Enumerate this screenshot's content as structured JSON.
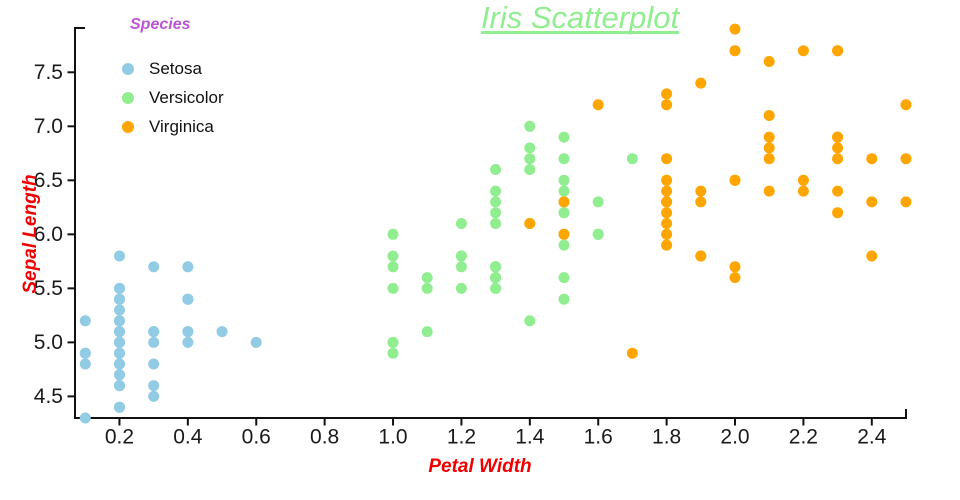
{
  "title": "Iris Scatterplot",
  "colors": {
    "title": "#90EE90",
    "axis_labels": "#F00000",
    "legend_title": "#BA55D3",
    "axis_line": "#111111",
    "tick_text": "#1a1a1a",
    "setosa": "#92CBE4",
    "versicolor": "#90EE90",
    "virginica": "#FFA500"
  },
  "legend": {
    "title": "Species",
    "items": [
      {
        "label": "Setosa",
        "color": "#92CBE4"
      },
      {
        "label": "Versicolor",
        "color": "#90EE90"
      },
      {
        "label": "Virginica",
        "color": "#FFA500"
      }
    ]
  },
  "chart_data": {
    "type": "scatter",
    "title": "Iris Scatterplot",
    "xlabel": "Petal Width",
    "ylabel": "Sepal Length",
    "xlim": [
      0.07,
      2.5
    ],
    "ylim": [
      4.3,
      7.91
    ],
    "x_ticks": [
      0.2,
      0.4,
      0.6,
      0.8,
      1.0,
      1.2,
      1.4,
      1.6,
      1.8,
      2.0,
      2.2,
      2.4
    ],
    "x_tick_labels": [
      "0.2",
      "0.4",
      "0.6",
      "0.8",
      "1.0",
      "1.2",
      "1.4",
      "1.6",
      "1.8",
      "2.0",
      "2.2",
      "2.4"
    ],
    "y_ticks": [
      4.5,
      5.0,
      5.5,
      6.0,
      6.5,
      7.0,
      7.5
    ],
    "y_tick_labels": [
      "4.5",
      "5.0",
      "5.5",
      "6.0",
      "6.5",
      "7.0",
      "7.5"
    ],
    "grid": false,
    "legend_position": "upper-left",
    "series": [
      {
        "name": "Setosa",
        "color": "#92CBE4",
        "points": [
          [
            0.2,
            5.1
          ],
          [
            0.2,
            4.9
          ],
          [
            0.2,
            4.7
          ],
          [
            0.2,
            4.6
          ],
          [
            0.2,
            5.0
          ],
          [
            0.4,
            5.4
          ],
          [
            0.3,
            4.6
          ],
          [
            0.2,
            5.0
          ],
          [
            0.2,
            4.4
          ],
          [
            0.1,
            4.9
          ],
          [
            0.2,
            5.4
          ],
          [
            0.2,
            4.8
          ],
          [
            0.1,
            4.8
          ],
          [
            0.1,
            4.3
          ],
          [
            0.2,
            5.8
          ],
          [
            0.4,
            5.7
          ],
          [
            0.4,
            5.4
          ],
          [
            0.3,
            5.1
          ],
          [
            0.3,
            5.7
          ],
          [
            0.3,
            5.1
          ],
          [
            0.2,
            5.4
          ],
          [
            0.4,
            5.1
          ],
          [
            0.2,
            4.6
          ],
          [
            0.5,
            5.1
          ],
          [
            0.2,
            4.8
          ],
          [
            0.2,
            5.0
          ],
          [
            0.4,
            5.0
          ],
          [
            0.2,
            5.2
          ],
          [
            0.2,
            5.2
          ],
          [
            0.2,
            4.7
          ],
          [
            0.2,
            4.8
          ],
          [
            0.4,
            5.4
          ],
          [
            0.1,
            5.2
          ],
          [
            0.2,
            5.5
          ],
          [
            0.2,
            4.9
          ],
          [
            0.2,
            5.0
          ],
          [
            0.2,
            5.5
          ],
          [
            0.1,
            4.9
          ],
          [
            0.2,
            4.4
          ],
          [
            0.2,
            5.1
          ],
          [
            0.3,
            5.0
          ],
          [
            0.3,
            4.5
          ],
          [
            0.2,
            4.4
          ],
          [
            0.6,
            5.0
          ],
          [
            0.4,
            5.1
          ],
          [
            0.3,
            4.8
          ],
          [
            0.2,
            5.1
          ],
          [
            0.2,
            4.6
          ],
          [
            0.2,
            5.3
          ],
          [
            0.2,
            5.0
          ]
        ]
      },
      {
        "name": "Versicolor",
        "color": "#90EE90",
        "points": [
          [
            1.4,
            7.0
          ],
          [
            1.5,
            6.4
          ],
          [
            1.5,
            6.9
          ],
          [
            1.3,
            5.5
          ],
          [
            1.5,
            6.5
          ],
          [
            1.3,
            5.7
          ],
          [
            1.6,
            6.3
          ],
          [
            1.0,
            4.9
          ],
          [
            1.3,
            6.6
          ],
          [
            1.4,
            5.2
          ],
          [
            1.0,
            5.0
          ],
          [
            1.5,
            5.9
          ],
          [
            1.0,
            6.0
          ],
          [
            1.4,
            6.1
          ],
          [
            1.3,
            5.6
          ],
          [
            1.4,
            6.7
          ],
          [
            1.5,
            5.6
          ],
          [
            1.0,
            5.8
          ],
          [
            1.5,
            6.2
          ],
          [
            1.1,
            5.6
          ],
          [
            1.8,
            5.9
          ],
          [
            1.3,
            6.1
          ],
          [
            1.5,
            6.3
          ],
          [
            1.2,
            6.1
          ],
          [
            1.3,
            6.4
          ],
          [
            1.4,
            6.6
          ],
          [
            1.4,
            6.8
          ],
          [
            1.7,
            6.7
          ],
          [
            1.5,
            6.0
          ],
          [
            1.0,
            5.7
          ],
          [
            1.1,
            5.5
          ],
          [
            1.0,
            5.5
          ],
          [
            1.2,
            5.8
          ],
          [
            1.6,
            6.0
          ],
          [
            1.5,
            5.4
          ],
          [
            1.6,
            6.0
          ],
          [
            1.5,
            6.7
          ],
          [
            1.3,
            6.3
          ],
          [
            1.3,
            5.6
          ],
          [
            1.3,
            5.5
          ],
          [
            1.2,
            5.5
          ],
          [
            1.4,
            6.1
          ],
          [
            1.2,
            5.8
          ],
          [
            1.0,
            5.0
          ],
          [
            1.3,
            5.6
          ],
          [
            1.2,
            5.7
          ],
          [
            1.3,
            5.7
          ],
          [
            1.3,
            6.2
          ],
          [
            1.1,
            5.1
          ],
          [
            1.3,
            5.7
          ]
        ]
      },
      {
        "name": "Virginica",
        "color": "#FFA500",
        "points": [
          [
            2.5,
            6.3
          ],
          [
            1.9,
            5.8
          ],
          [
            2.1,
            7.1
          ],
          [
            1.8,
            6.3
          ],
          [
            2.2,
            6.5
          ],
          [
            2.1,
            7.6
          ],
          [
            1.7,
            4.9
          ],
          [
            1.8,
            7.3
          ],
          [
            1.8,
            6.7
          ],
          [
            2.5,
            7.2
          ],
          [
            2.0,
            6.5
          ],
          [
            1.9,
            6.4
          ],
          [
            2.1,
            6.8
          ],
          [
            2.0,
            5.7
          ],
          [
            2.4,
            5.8
          ],
          [
            2.3,
            6.4
          ],
          [
            1.8,
            6.5
          ],
          [
            2.2,
            7.7
          ],
          [
            2.3,
            7.7
          ],
          [
            1.5,
            6.0
          ],
          [
            2.3,
            6.9
          ],
          [
            2.0,
            5.6
          ],
          [
            2.0,
            7.7
          ],
          [
            1.8,
            6.3
          ],
          [
            2.1,
            6.7
          ],
          [
            1.8,
            7.2
          ],
          [
            1.8,
            6.2
          ],
          [
            1.8,
            6.1
          ],
          [
            2.1,
            6.4
          ],
          [
            1.6,
            7.2
          ],
          [
            1.9,
            7.4
          ],
          [
            2.0,
            7.9
          ],
          [
            2.2,
            6.4
          ],
          [
            1.5,
            6.3
          ],
          [
            1.4,
            6.1
          ],
          [
            2.3,
            7.7
          ],
          [
            2.4,
            6.3
          ],
          [
            1.8,
            6.4
          ],
          [
            1.8,
            6.0
          ],
          [
            2.1,
            6.9
          ],
          [
            2.4,
            6.7
          ],
          [
            2.3,
            6.9
          ],
          [
            1.9,
            5.8
          ],
          [
            2.3,
            6.8
          ],
          [
            2.5,
            6.7
          ],
          [
            2.3,
            6.7
          ],
          [
            1.9,
            6.3
          ],
          [
            2.0,
            6.5
          ],
          [
            2.3,
            6.2
          ],
          [
            1.8,
            5.9
          ]
        ]
      }
    ]
  }
}
